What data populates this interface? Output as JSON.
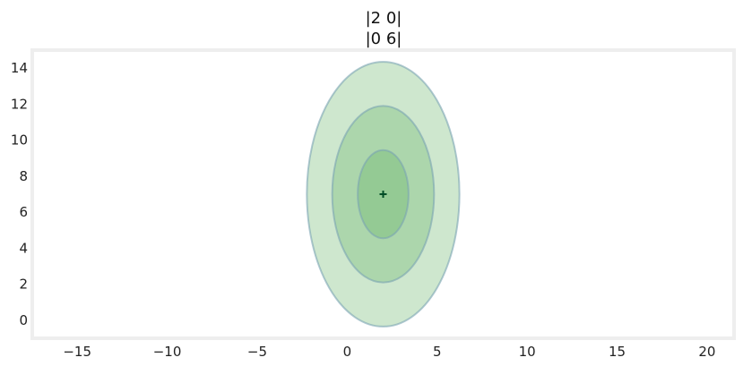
{
  "chart_data": {
    "type": "scatter",
    "title_lines": [
      "|2 0|",
      "|0 6|"
    ],
    "xlabel": "",
    "ylabel": "",
    "xlim": [
      -17.5,
      21.5
    ],
    "ylim": [
      -1,
      15
    ],
    "x_ticks": [
      -15,
      -10,
      -5,
      0,
      5,
      10,
      15,
      20
    ],
    "y_ticks": [
      0,
      2,
      4,
      6,
      8,
      10,
      12,
      14
    ],
    "grid": false,
    "mean": {
      "x": 2,
      "y": 7,
      "marker": "+"
    },
    "covariance": [
      [
        2,
        0
      ],
      [
        0,
        6
      ]
    ],
    "ellipses": [
      {
        "std": 1,
        "rx": 1.41,
        "ry": 2.45
      },
      {
        "std": 2,
        "rx": 2.83,
        "ry": 4.9
      },
      {
        "std": 3,
        "rx": 4.24,
        "ry": 7.35
      }
    ],
    "colors": {
      "fill": "#5cb05c",
      "edge": "#7aa3b3",
      "marker": "#004d26",
      "frame": "#eeeeee"
    }
  }
}
